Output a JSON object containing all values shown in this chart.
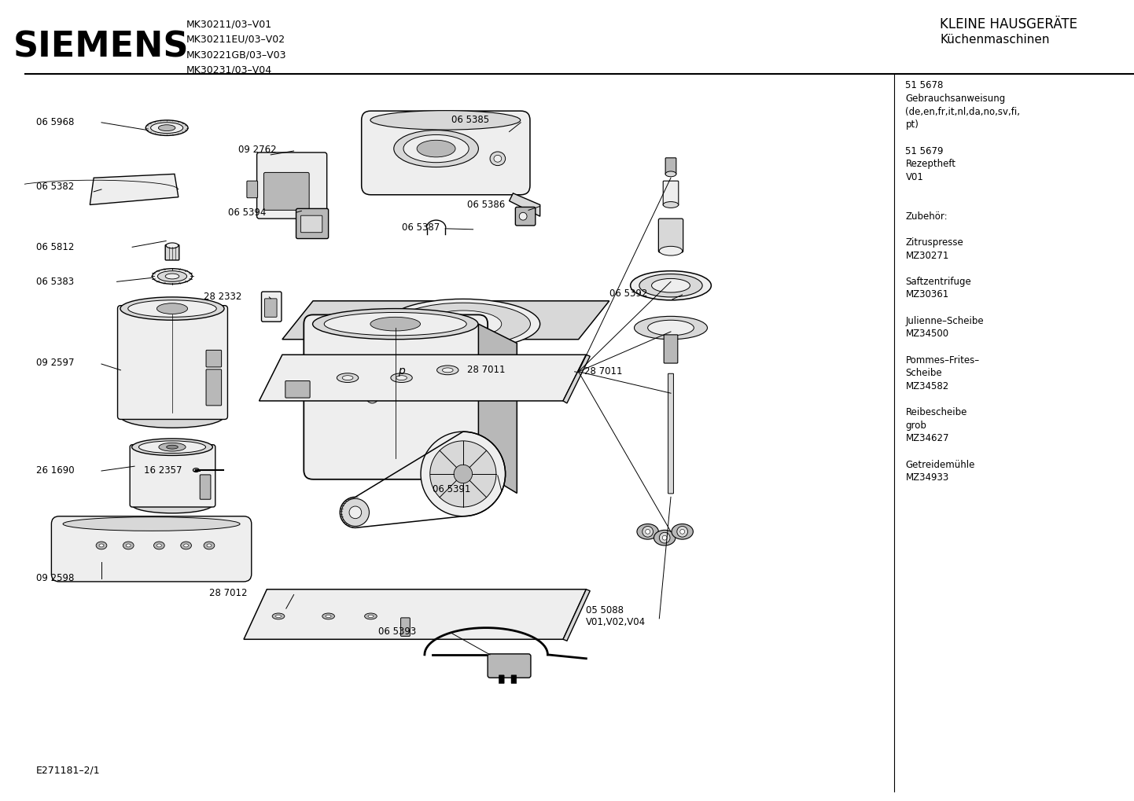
{
  "title_siemens": "SIEMENS",
  "header_right_top": "KLEINE HAUSGERÄTE",
  "header_right_sub": "Küchenmaschinen",
  "model_lines": [
    "MK30211/03–V01",
    "MK30211EU/03–V02",
    "MK30221GB/03–V03",
    "MK30231/03–V04"
  ],
  "footer_left": "E271181–2/1",
  "right_panel_lines": [
    "51 5678",
    "Gebrauchsanweisung",
    "(de,en,fr,it,nl,da,no,sv,fi,",
    "pt)",
    "",
    "51 5679",
    "Rezeptheft",
    "V01",
    "",
    "",
    "Zubehör:",
    "",
    "Zitruspresse",
    "MZ30271",
    "",
    "Saftzentrifuge",
    "MZ30361",
    "",
    "Julienne–Scheibe",
    "MZ34500",
    "",
    "Pommes–Frites–",
    "Scheibe",
    "MZ34582",
    "",
    "Reibescheibe",
    "grob",
    "MZ34627",
    "",
    "Getreidemühle",
    "MZ34933"
  ],
  "bg_color": "#ffffff",
  "line_color": "#000000",
  "text_color": "#000000"
}
